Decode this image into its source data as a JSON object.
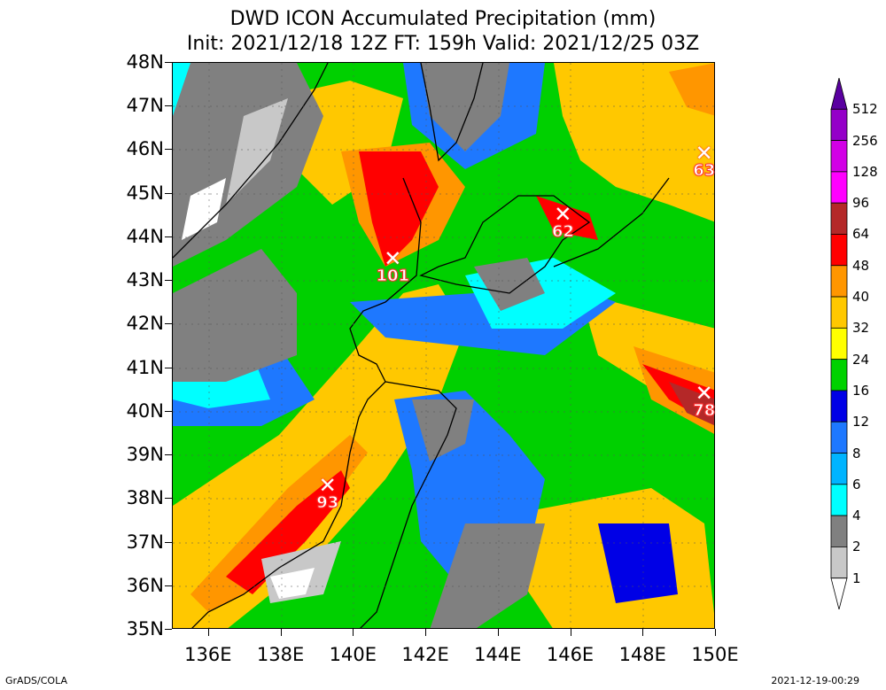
{
  "title": {
    "line1": "DWD ICON Accumulated Precipitation (mm)",
    "line2": "Init: 2021/12/18 12Z  FT: 159h  Valid: 2021/12/25 03Z"
  },
  "axes": {
    "lat_labels": [
      "48N",
      "47N",
      "46N",
      "45N",
      "44N",
      "43N",
      "42N",
      "41N",
      "40N",
      "39N",
      "38N",
      "37N",
      "36N",
      "35N"
    ],
    "lon_labels": [
      "136E",
      "138E",
      "140E",
      "142E",
      "144E",
      "146E",
      "148E",
      "150E"
    ],
    "lat_range": [
      35,
      48
    ],
    "lon_range": [
      135,
      150
    ]
  },
  "colorbar": {
    "labels": [
      "512",
      "256",
      "128",
      "96",
      "64",
      "48",
      "40",
      "32",
      "24",
      "16",
      "12",
      "8",
      "6",
      "4",
      "2",
      "1"
    ],
    "colors": [
      "#5a00a0",
      "#9400c8",
      "#d200e6",
      "#ff00ff",
      "#b42828",
      "#ff0000",
      "#ff9600",
      "#ffc800",
      "#ffff00",
      "#00d200",
      "#0000e6",
      "#1e78ff",
      "#00b4ff",
      "#00ffff",
      "#808080",
      "#c8c8c8",
      "#ffffff"
    ]
  },
  "markers": [
    {
      "value": "101",
      "lon": 141.1,
      "lat": 43.5
    },
    {
      "value": "62",
      "lon": 145.8,
      "lat": 44.5
    },
    {
      "value": "63",
      "lon": 149.7,
      "lat": 45.9
    },
    {
      "value": "78",
      "lon": 149.7,
      "lat": 40.4
    },
    {
      "value": "93",
      "lon": 139.3,
      "lat": 38.3
    }
  ],
  "footer": {
    "left": "GrADS/COLA",
    "right": "2021-12-19-00:29"
  }
}
